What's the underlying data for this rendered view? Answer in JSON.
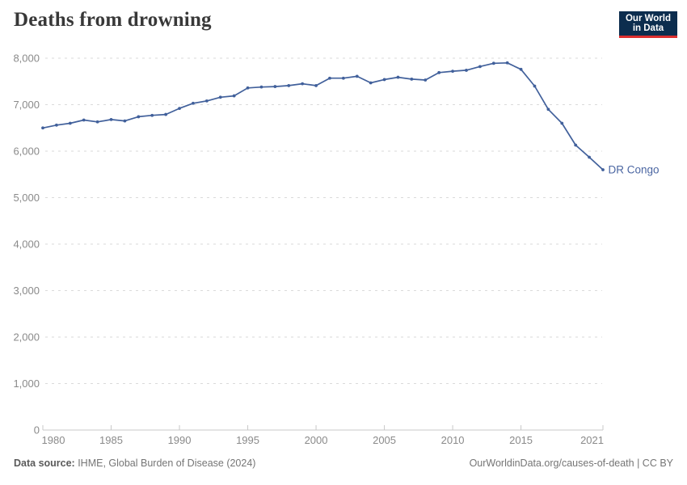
{
  "header": {
    "title": "Deaths from drowning",
    "logo": {
      "line1": "Our World",
      "line2": "in Data"
    }
  },
  "chart_data": {
    "type": "line",
    "title": "Deaths from drowning",
    "entity_label": "DR Congo",
    "x": [
      1980,
      1981,
      1982,
      1983,
      1984,
      1985,
      1986,
      1987,
      1988,
      1989,
      1990,
      1991,
      1992,
      1993,
      1994,
      1995,
      1996,
      1997,
      1998,
      1999,
      2000,
      2001,
      2002,
      2003,
      2004,
      2005,
      2006,
      2007,
      2008,
      2009,
      2010,
      2011,
      2012,
      2013,
      2014,
      2015,
      2016,
      2017,
      2018,
      2019,
      2020,
      2021
    ],
    "series": [
      {
        "name": "DR Congo",
        "values": [
          6500,
          6560,
          6600,
          6670,
          6630,
          6680,
          6650,
          6740,
          6770,
          6790,
          6920,
          7030,
          7080,
          7160,
          7190,
          7360,
          7380,
          7390,
          7410,
          7450,
          7410,
          7570,
          7570,
          7610,
          7470,
          7540,
          7590,
          7550,
          7530,
          7690,
          7720,
          7740,
          7820,
          7890,
          7900,
          7760,
          7400,
          6900,
          6600,
          6130,
          5870,
          5600
        ]
      }
    ],
    "xlim": [
      1980,
      2021
    ],
    "ylim": [
      0,
      8000
    ],
    "x_ticks": [
      1980,
      1985,
      1990,
      1995,
      2000,
      2005,
      2010,
      2015,
      2021
    ],
    "x_tick_labels": [
      "1980",
      "1985",
      "1990",
      "1995",
      "2000",
      "2005",
      "2010",
      "2015",
      "2021"
    ],
    "y_ticks": [
      0,
      1000,
      2000,
      3000,
      4000,
      5000,
      6000,
      7000,
      8000
    ],
    "y_tick_labels": [
      "0",
      "1,000",
      "2,000",
      "3,000",
      "4,000",
      "5,000",
      "6,000",
      "7,000",
      "8,000"
    ],
    "grid": "horizontal-dashed",
    "legend": "line-end-label",
    "line_color": "#41609b",
    "entity_label_color": "#4b66a2",
    "gridline_color": "#dadada",
    "axis_line_color": "#c8c8c8",
    "tick_text_color": "#8a8a8a"
  },
  "footer": {
    "source_label": "Data source:",
    "source_text": " IHME, Global Burden of Disease (2024)",
    "credit": "OurWorldinData.org/causes-of-death | CC BY"
  }
}
